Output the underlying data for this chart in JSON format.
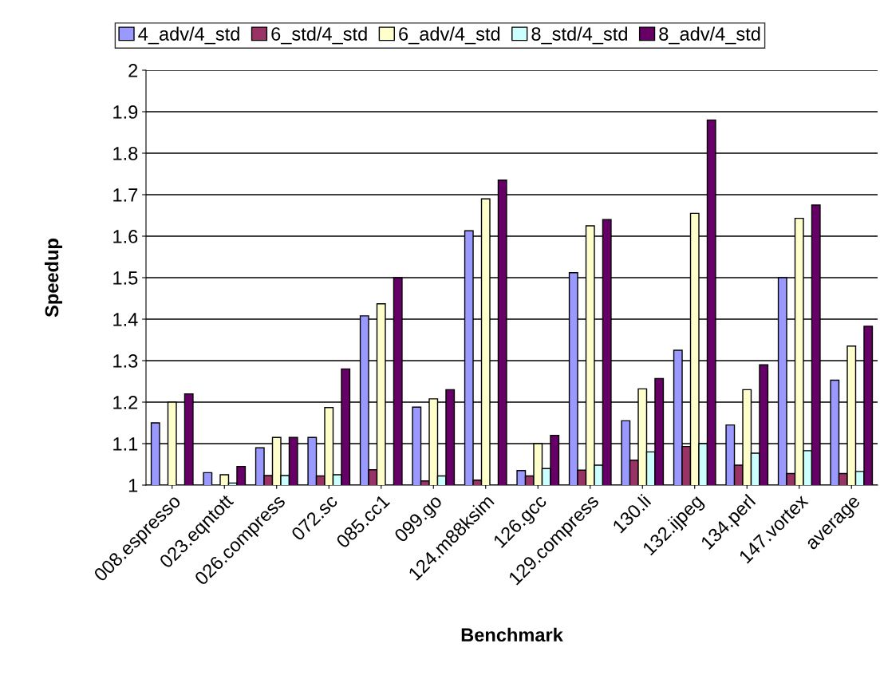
{
  "chart_data": {
    "type": "bar",
    "xlabel": "Benchmark",
    "ylabel": "Speedup",
    "categories": [
      "008.espresso",
      "023.eqntott",
      "026.compress",
      "072.sc",
      "085.cc1",
      "099.go",
      "124.m88ksim",
      "126.gcc",
      "129.compress",
      "130.li",
      "132.ijpeg",
      "134.perl",
      "147.vortex",
      "average"
    ],
    "series": [
      {
        "name": "4_adv/4_std",
        "color": "#9999ff",
        "values": [
          1.15,
          1.03,
          1.09,
          1.115,
          1.408,
          1.188,
          1.613,
          1.035,
          1.512,
          1.155,
          1.325,
          1.145,
          1.5,
          1.253
        ]
      },
      {
        "name": "6_std/4_std",
        "color": "#993366",
        "values": [
          null,
          null,
          1.023,
          1.022,
          1.037,
          1.01,
          1.012,
          1.022,
          1.036,
          1.06,
          1.093,
          1.048,
          1.028,
          1.028
        ]
      },
      {
        "name": "6_adv/4_std",
        "color": "#ffffcc",
        "values": [
          1.2,
          1.025,
          1.115,
          1.187,
          1.437,
          1.208,
          1.69,
          1.1,
          1.625,
          1.232,
          1.655,
          1.23,
          1.643,
          1.335
        ]
      },
      {
        "name": "8_std/4_std",
        "color": "#ccffff",
        "values": [
          null,
          1.005,
          1.023,
          1.025,
          null,
          1.022,
          null,
          1.04,
          1.048,
          1.08,
          1.1,
          1.077,
          1.083,
          1.033
        ]
      },
      {
        "name": "8_adv/4_std",
        "color": "#660066",
        "values": [
          1.22,
          1.045,
          1.115,
          1.28,
          1.5,
          1.23,
          1.735,
          1.12,
          1.64,
          1.257,
          1.88,
          1.29,
          1.675,
          1.383
        ]
      }
    ],
    "ylim": [
      1,
      2
    ],
    "yticks": [
      1,
      1.1,
      1.2,
      1.3,
      1.4,
      1.5,
      1.6,
      1.7,
      1.8,
      1.9,
      2
    ],
    "grid": "y",
    "legend": "top"
  }
}
